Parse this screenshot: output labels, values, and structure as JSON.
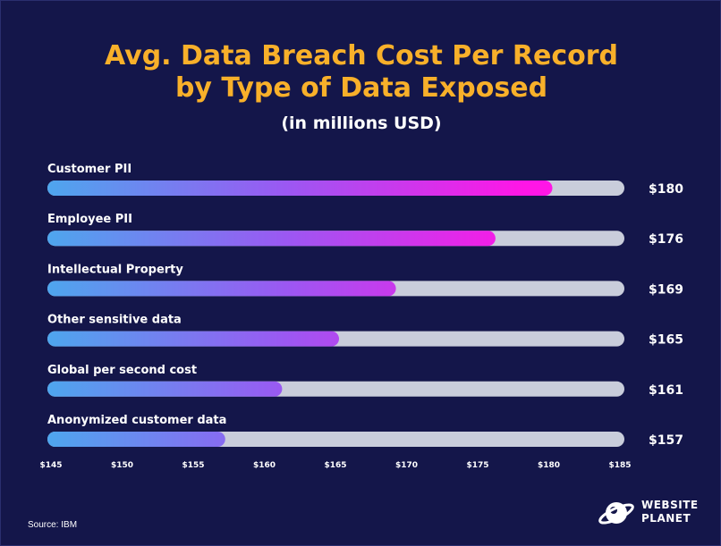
{
  "title_line1": "Avg. Data Breach Cost Per Record",
  "title_line2": "by Type of Data Exposed",
  "subtitle": "(in millions USD)",
  "source": "Source: IBM",
  "logo": {
    "line1": "WEBSITE",
    "line2": "PLANET",
    "icon": "globe-ring-icon"
  },
  "colors": {
    "background": "#14164a",
    "title": "#f8b02a",
    "track": "#c9cddb",
    "gradient_start": "#4ea6ee",
    "gradient_mid": "#9b58f2",
    "gradient_end": "#ff16e6",
    "text": "#ffffff"
  },
  "chart_data": {
    "type": "bar",
    "orientation": "horizontal",
    "categories": [
      "Customer PII",
      "Employee PII",
      "Intellectual Property",
      "Other sensitive data",
      "Global per second cost",
      "Anonymized customer data"
    ],
    "values": [
      180,
      176,
      169,
      165,
      161,
      157
    ],
    "value_labels": [
      "$180",
      "$176",
      "$169",
      "$165",
      "$161",
      "$157"
    ],
    "xlim": [
      145,
      185
    ],
    "xticks": [
      145,
      150,
      155,
      160,
      165,
      170,
      175,
      180,
      185
    ],
    "xtick_labels": [
      "$145",
      "$150",
      "$155",
      "$160",
      "$165",
      "$170",
      "$175",
      "$180",
      "$185"
    ],
    "title": "Avg. Data Breach Cost Per Record by Type of Data Exposed",
    "subtitle": "(in millions USD)",
    "grid": false,
    "legend": "none"
  }
}
